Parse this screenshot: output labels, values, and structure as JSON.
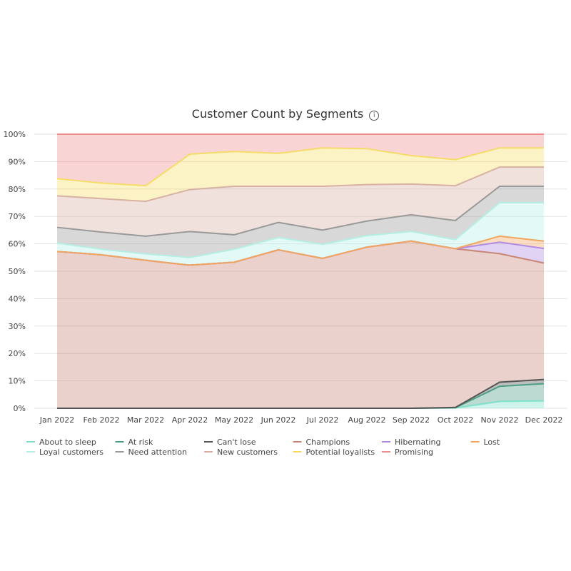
{
  "chart_data": {
    "type": "area",
    "stacked": "percent",
    "title": "Customer Count by Segments",
    "title_icon": "info-icon",
    "categories": [
      "Jan 2022",
      "Feb 2022",
      "Mar 2022",
      "Apr 2022",
      "May 2022",
      "Jun 2022",
      "Jul 2022",
      "Aug 2022",
      "Sep 2022",
      "Oct 2022",
      "Nov 2022",
      "Dec 2022"
    ],
    "ylim": [
      0,
      100
    ],
    "yticks": [
      "0%",
      "10%",
      "20%",
      "30%",
      "40%",
      "50%",
      "60%",
      "70%",
      "80%",
      "90%",
      "100%"
    ],
    "grid": true,
    "legend_position": "bottom",
    "series": [
      {
        "name": "About to sleep",
        "color": "#7fe0cb",
        "values": [
          0,
          0,
          0,
          0,
          0,
          0,
          0,
          0,
          0,
          0.1,
          2.5,
          2.7
        ]
      },
      {
        "name": "At risk",
        "color": "#4e9e86",
        "values": [
          0,
          0,
          0,
          0,
          0,
          0,
          0,
          0,
          0,
          0.1,
          5.5,
          6.3
        ]
      },
      {
        "name": "Can't lose",
        "color": "#555555",
        "values": [
          0,
          0,
          0,
          0,
          0,
          0,
          0,
          0,
          0,
          0.1,
          1.5,
          1.5
        ]
      },
      {
        "name": "Champions",
        "color": "#c98676",
        "values": [
          57.2,
          56,
          54,
          52.2,
          53.3,
          57.8,
          54.7,
          58.8,
          61,
          57.9,
          46.9,
          42.5
        ]
      },
      {
        "name": "Hibernating",
        "color": "#b18be3",
        "values": [
          0,
          0,
          0,
          0,
          0,
          0,
          0,
          0,
          0,
          0,
          4.2,
          5.3
        ]
      },
      {
        "name": "Lost",
        "color": "#f2a55e",
        "values": [
          0,
          0,
          0,
          0,
          0,
          0,
          0,
          0,
          0,
          0,
          2.2,
          2.7
        ]
      },
      {
        "name": "Loyal customers",
        "color": "#b5efe4",
        "values": [
          3.1,
          2,
          2.3,
          2.8,
          4.7,
          4.5,
          5.1,
          4.2,
          3.5,
          3.3,
          12.2,
          14
        ]
      },
      {
        "name": "Need attention",
        "color": "#999999",
        "values": [
          5.7,
          6.3,
          6.5,
          9.5,
          5.3,
          5.5,
          5.2,
          5.3,
          6.1,
          7,
          6,
          6
        ]
      },
      {
        "name": "New customers",
        "color": "#d8b1a3",
        "values": [
          11.5,
          12.2,
          12.7,
          15.3,
          17.7,
          13.2,
          16,
          13.3,
          11.2,
          12.7,
          7,
          7
        ]
      },
      {
        "name": "Potential loyalists",
        "color": "#f5dc68",
        "values": [
          6.3,
          5.7,
          5.7,
          12.9,
          12.7,
          12,
          14,
          13.1,
          10.4,
          9.5,
          7,
          7
        ]
      },
      {
        "name": "Promising",
        "color": "#f08d8d",
        "values": [
          16.2,
          17.8,
          18.8,
          7.3,
          6.3,
          7,
          5,
          5.3,
          7.8,
          9.3,
          5,
          5
        ]
      }
    ]
  }
}
